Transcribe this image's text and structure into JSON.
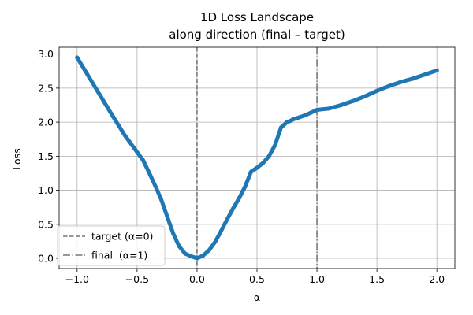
{
  "chart_data": {
    "type": "line",
    "title": "1D Loss Landscape",
    "subtitle": "along direction (final – target)",
    "xlabel": "α",
    "ylabel": "Loss",
    "xlim": [
      -1.15,
      2.15
    ],
    "ylim": [
      -0.15,
      3.1
    ],
    "xticks": [
      -1.0,
      -0.5,
      0.0,
      0.5,
      1.0,
      1.5,
      2.0
    ],
    "xtick_labels": [
      "−1.0",
      "−0.5",
      "0.0",
      "0.5",
      "1.0",
      "1.5",
      "2.0"
    ],
    "yticks": [
      0.0,
      0.5,
      1.0,
      1.5,
      2.0,
      2.5,
      3.0
    ],
    "ytick_labels": [
      "0.0",
      "0.5",
      "1.0",
      "1.5",
      "2.0",
      "2.5",
      "3.0"
    ],
    "grid": true,
    "legend_position": "bottom-left",
    "series": [
      {
        "color": "#1f77b4",
        "x": [
          -1.0,
          -0.9,
          -0.8,
          -0.7,
          -0.6,
          -0.5,
          -0.45,
          -0.4,
          -0.35,
          -0.3,
          -0.25,
          -0.2,
          -0.15,
          -0.1,
          -0.05,
          0.0,
          0.05,
          0.1,
          0.15,
          0.2,
          0.25,
          0.3,
          0.35,
          0.4,
          0.45,
          0.5,
          0.55,
          0.6,
          0.65,
          0.7,
          0.75,
          0.78,
          0.8,
          0.85,
          0.9,
          0.95,
          1.0,
          1.1,
          1.2,
          1.3,
          1.4,
          1.5,
          1.6,
          1.7,
          1.8,
          1.9,
          2.0
        ],
        "y": [
          2.95,
          2.66,
          2.37,
          2.08,
          1.8,
          1.56,
          1.44,
          1.26,
          1.07,
          0.87,
          0.62,
          0.37,
          0.18,
          0.07,
          0.03,
          0.0,
          0.04,
          0.12,
          0.24,
          0.4,
          0.57,
          0.73,
          0.88,
          1.05,
          1.27,
          1.33,
          1.4,
          1.5,
          1.66,
          1.92,
          2.0,
          2.02,
          2.04,
          2.07,
          2.1,
          2.14,
          2.18,
          2.2,
          2.25,
          2.31,
          2.38,
          2.46,
          2.53,
          2.59,
          2.64,
          2.7,
          2.76
        ]
      }
    ],
    "reference_lines": [
      {
        "x": 0.0,
        "style": "dashed",
        "color": "#777777",
        "label": "target (α=0)"
      },
      {
        "x": 1.0,
        "style": "dashdot",
        "color": "#777777",
        "label": "final  (α=1)"
      }
    ]
  }
}
